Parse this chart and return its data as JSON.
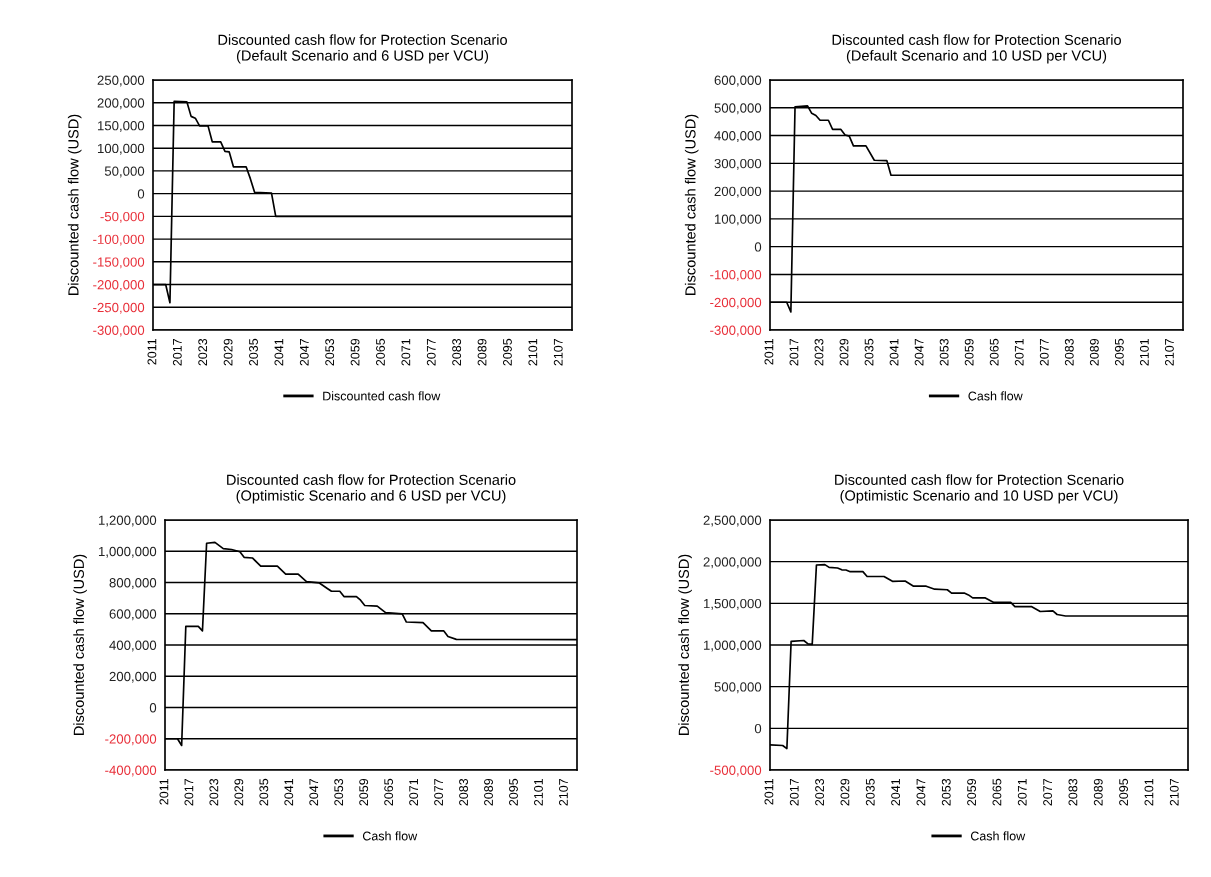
{
  "chart_data": [
    {
      "type": "line",
      "title": "Discounted cash flow for Protection Scenario",
      "subtitle": "(Default Scenario and 6 USD per VCU)",
      "ylabel": "Discounted cash flow (USD)",
      "legend": "bottom",
      "grid": "y",
      "marker": "none",
      "line_style": "solid",
      "xlim": [
        2011,
        2110
      ],
      "xticks": [
        2011,
        2017,
        2023,
        2029,
        2035,
        2041,
        2047,
        2053,
        2059,
        2065,
        2071,
        2077,
        2083,
        2089,
        2095,
        2101,
        2107
      ],
      "ylim": [
        -300000,
        250000
      ],
      "yticks": [
        {
          "value": -300000,
          "label": "-300,000"
        },
        {
          "value": -250000,
          "label": "-250,000"
        },
        {
          "value": -200000,
          "label": "-200,000"
        },
        {
          "value": -150000,
          "label": "-150,000"
        },
        {
          "value": -100000,
          "label": "-100,000"
        },
        {
          "value": -50000,
          "label": "-50,000"
        },
        0,
        {
          "value": 50000,
          "label": "50,000"
        },
        {
          "value": 100000,
          "label": "100,000"
        },
        {
          "value": 150000,
          "label": "150,000"
        },
        {
          "value": 200000,
          "label": "200,000"
        },
        {
          "value": 250000,
          "label": "250,000"
        }
      ],
      "series": [
        {
          "name": "Discounted cash flow",
          "color": "#000000",
          "x": [
            2011,
            2014,
            2015,
            2016,
            2019,
            2020,
            2021,
            2022,
            2024,
            2025,
            2027,
            2028,
            2029,
            2030,
            2033,
            2034,
            2035,
            2039,
            2040,
            2110
          ],
          "values": [
            -200000,
            -200000,
            -240000,
            203000,
            202000,
            170000,
            166000,
            149000,
            149000,
            114000,
            114000,
            93000,
            92000,
            59000,
            59000,
            33000,
            3000,
            1000,
            -50000,
            -50000
          ]
        }
      ]
    },
    {
      "type": "line",
      "title": "Discounted cash flow for Protection Scenario",
      "subtitle": "(Default Scenario and 10 USD per VCU)",
      "ylabel": "Discounted cash flow (USD)",
      "legend": "bottom",
      "grid": "y",
      "marker": "none",
      "line_style": "solid",
      "xlim": [
        2011,
        2110
      ],
      "xticks": [
        2011,
        2017,
        2023,
        2029,
        2035,
        2041,
        2047,
        2053,
        2059,
        2065,
        2071,
        2077,
        2083,
        2089,
        2095,
        2101,
        2107
      ],
      "ylim": [
        -300000,
        600000
      ],
      "yticks": [
        {
          "value": -300000,
          "label": "-300,000"
        },
        {
          "value": -200000,
          "label": "-200,000"
        },
        {
          "value": -100000,
          "label": "-100,000"
        },
        0,
        {
          "value": 100000,
          "label": "100,000"
        },
        {
          "value": 200000,
          "label": "200,000"
        },
        {
          "value": 300000,
          "label": "300,000"
        },
        {
          "value": 400000,
          "label": "400,000"
        },
        {
          "value": 500000,
          "label": "500,000"
        },
        {
          "value": 600000,
          "label": "600,000"
        }
      ],
      "series": [
        {
          "name": "Cash flow",
          "color": "#000000",
          "x": [
            2011,
            2015,
            2016,
            2017,
            2020,
            2021,
            2022,
            2023,
            2025,
            2026,
            2028,
            2029,
            2030,
            2031,
            2034,
            2036,
            2039,
            2040,
            2110
          ],
          "values": [
            -200000,
            -200000,
            -235000,
            503000,
            507000,
            480000,
            472000,
            455000,
            455000,
            422000,
            422000,
            402000,
            398000,
            363000,
            363000,
            311000,
            310000,
            257000,
            257000
          ]
        }
      ]
    },
    {
      "type": "line",
      "title": "Discounted cash flow for Protection Scenario",
      "subtitle": "(Optimistic Scenario and 6 USD per VCU)",
      "ylabel": "Discounted cash flow (USD)",
      "legend": "bottom",
      "grid": "y",
      "marker": "none",
      "line_style": "solid",
      "xlim": [
        2011,
        2110
      ],
      "xticks": [
        2011,
        2017,
        2023,
        2029,
        2035,
        2041,
        2047,
        2053,
        2059,
        2065,
        2071,
        2077,
        2083,
        2089,
        2095,
        2101,
        2107
      ],
      "ylim": [
        -400000,
        1200000
      ],
      "yticks": [
        {
          "value": -400000,
          "label": "-400,000"
        },
        {
          "value": -200000,
          "label": "-200,000"
        },
        0,
        {
          "value": 200000,
          "label": "200,000"
        },
        {
          "value": 400000,
          "label": "400,000"
        },
        {
          "value": 600000,
          "label": "600,000"
        },
        {
          "value": 800000,
          "label": "800,000"
        },
        {
          "value": 1000000,
          "label": "1,000,000"
        },
        {
          "value": 1200000,
          "label": "1,200,000"
        }
      ],
      "series": [
        {
          "name": "Cash flow",
          "color": "#000000",
          "x": [
            2011,
            2014,
            2015,
            2016,
            2019,
            2020,
            2021,
            2023,
            2025,
            2027,
            2029,
            2030,
            2032,
            2034,
            2038,
            2040,
            2043,
            2045,
            2048,
            2050,
            2051,
            2053,
            2054,
            2057,
            2058,
            2059,
            2062,
            2064,
            2068,
            2069,
            2073,
            2075,
            2078,
            2079,
            2081,
            2110
          ],
          "values": [
            -200000,
            -200000,
            -243000,
            519000,
            519000,
            490000,
            1051000,
            1057000,
            1017000,
            1011000,
            997000,
            961000,
            957000,
            905000,
            905000,
            854000,
            854000,
            806000,
            798000,
            762000,
            744000,
            744000,
            710000,
            710000,
            687000,
            653000,
            649000,
            607000,
            599000,
            547000,
            543000,
            490000,
            490000,
            454000,
            436000,
            434000
          ]
        }
      ]
    },
    {
      "type": "line",
      "title": "Discounted cash flow for Protection Scenario",
      "subtitle": "(Optimistic Scenario and 10 USD per VCU)",
      "ylabel": "Discounted cash flow (USD)",
      "legend": "bottom",
      "grid": "y",
      "marker": "none",
      "line_style": "solid",
      "xlim": [
        2011,
        2110
      ],
      "xticks": [
        2011,
        2017,
        2023,
        2029,
        2035,
        2041,
        2047,
        2053,
        2059,
        2065,
        2071,
        2077,
        2083,
        2089,
        2095,
        2101,
        2107
      ],
      "ylim": [
        -500000,
        2500000
      ],
      "yticks": [
        {
          "value": -500000,
          "label": "-500,000"
        },
        0,
        {
          "value": 500000,
          "label": "500,000"
        },
        {
          "value": 1000000,
          "label": "1,000,000"
        },
        {
          "value": 1500000,
          "label": "1,500,000"
        },
        {
          "value": 2000000,
          "label": "2,000,000"
        },
        {
          "value": 2500000,
          "label": "2,500,000"
        }
      ],
      "series": [
        {
          "name": "Cash flow",
          "color": "#000000",
          "x": [
            2011,
            2014,
            2015,
            2016,
            2019,
            2020,
            2021,
            2022,
            2024,
            2025,
            2027,
            2028,
            2029,
            2030,
            2033,
            2034,
            2038,
            2040,
            2043,
            2045,
            2048,
            2050,
            2053,
            2054,
            2057,
            2058,
            2059,
            2062,
            2064,
            2068,
            2069,
            2073,
            2075,
            2078,
            2079,
            2081,
            2110
          ],
          "values": [
            -199000,
            -206000,
            -243000,
            1043000,
            1054000,
            1014000,
            1007000,
            1960000,
            1964000,
            1931000,
            1924000,
            1902000,
            1900000,
            1880000,
            1880000,
            1822000,
            1822000,
            1764000,
            1768000,
            1706000,
            1706000,
            1670000,
            1663000,
            1623000,
            1623000,
            1601000,
            1565000,
            1565000,
            1511000,
            1511000,
            1460000,
            1460000,
            1402000,
            1409000,
            1366000,
            1348000,
            1348000
          ]
        }
      ]
    }
  ]
}
